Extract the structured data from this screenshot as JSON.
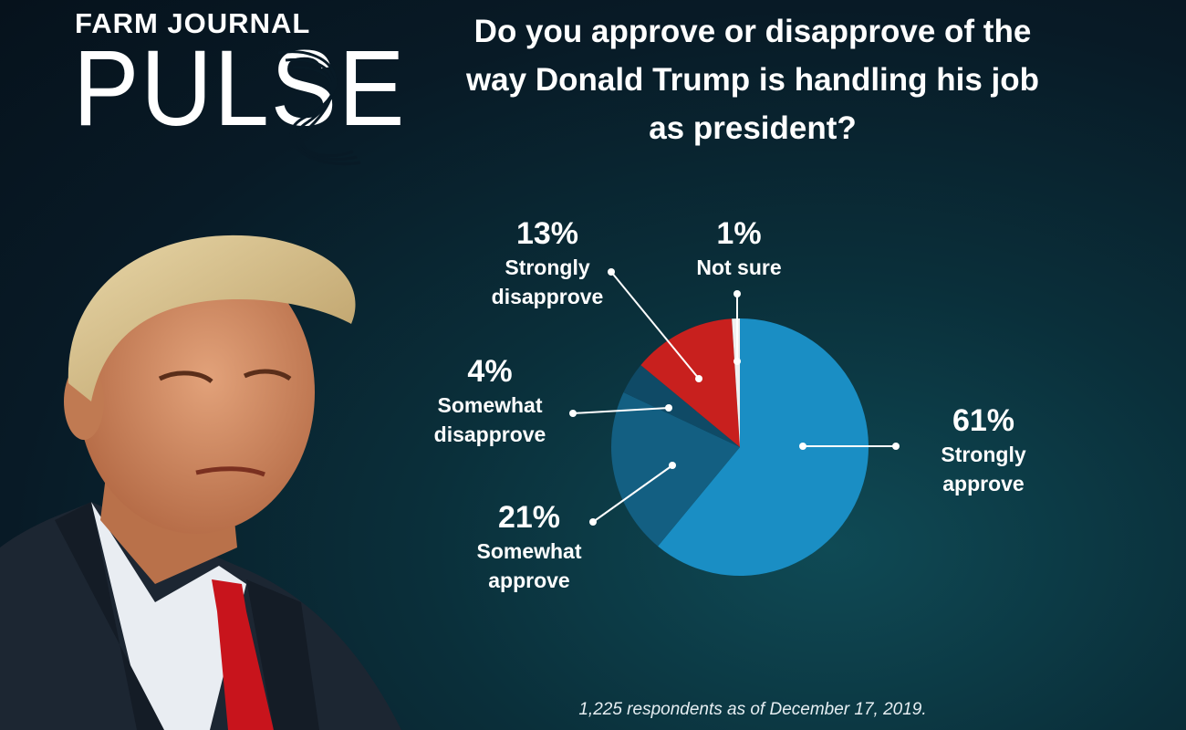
{
  "brand": {
    "top": "FARM JOURNAL",
    "main": "PULSE"
  },
  "question": "Do you approve or disapprove of the way Donald Trump is handling his job as president?",
  "footnote": "1,225 respondents as of December 17, 2019.",
  "chart_data": {
    "type": "pie",
    "title": "Do you approve or disapprove of the way Donald Trump is handling his job as president?",
    "slices": [
      {
        "label": "Strongly approve",
        "lines": [
          "Strongly",
          "approve"
        ],
        "value": 61,
        "pct_text": "61%",
        "color": "#1a8ec4"
      },
      {
        "label": "Somewhat approve",
        "lines": [
          "Somewhat",
          "approve"
        ],
        "value": 21,
        "pct_text": "21%",
        "color": "#135f82"
      },
      {
        "label": "Somewhat disapprove",
        "lines": [
          "Somewhat",
          "disapprove"
        ],
        "value": 4,
        "pct_text": "4%",
        "color": "#0f4a66"
      },
      {
        "label": "Strongly disapprove",
        "lines": [
          "Strongly",
          "disapprove"
        ],
        "value": 13,
        "pct_text": "13%",
        "color": "#c8201e"
      },
      {
        "label": "Not sure",
        "lines": [
          "Not sure"
        ],
        "value": 1,
        "pct_text": "1%",
        "color": "#f0f0f0"
      }
    ],
    "legend": "none",
    "data_labels": true
  }
}
